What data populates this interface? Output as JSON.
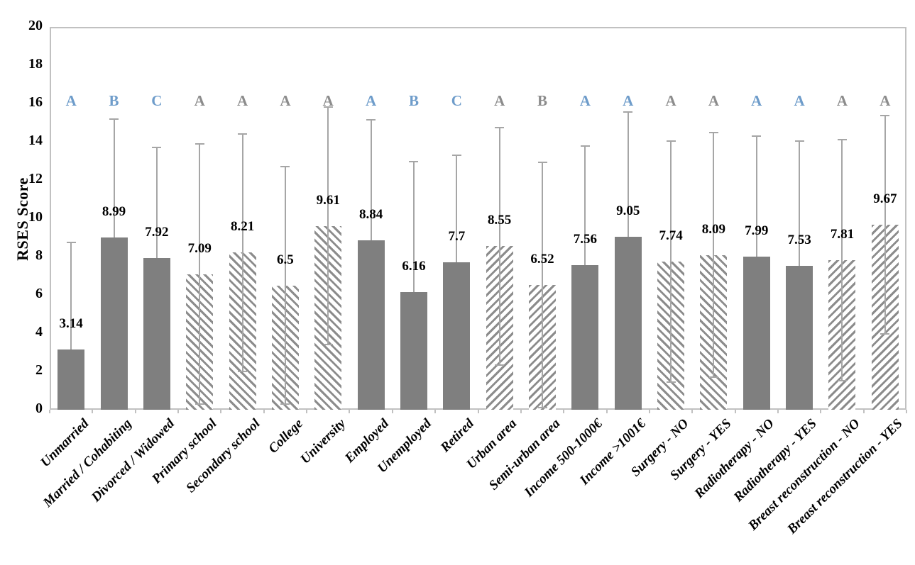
{
  "chart_data": {
    "type": "bar",
    "title": "",
    "xlabel": "",
    "ylabel": "RSES Score",
    "ylim": [
      0,
      20
    ],
    "ytick_step": 2,
    "grid": "off",
    "legend": "none",
    "categories": [
      "Unmarried",
      "Married / Cohabiting",
      "Divorced / Widowed",
      "Primary school",
      "Secondary school",
      "College",
      "University",
      "Employed",
      "Unemployed",
      "Retired",
      "Urban area",
      "Semi-urban area",
      "Income 500-1000€",
      "Income >1001€",
      "Surgery - NO",
      "Surgery - YES",
      "Radiotherapy - NO",
      "Radiotherapy - YES",
      "Breast reconstruction - NO",
      "Breast reconstruction - YES"
    ],
    "series": [
      {
        "name": "RSES Score",
        "values": [
          3.14,
          8.99,
          7.92,
          7.09,
          8.21,
          6.5,
          9.61,
          8.84,
          6.16,
          7.7,
          8.55,
          6.52,
          7.56,
          9.05,
          7.74,
          8.09,
          7.99,
          7.53,
          7.81,
          9.67
        ],
        "value_labels": [
          "3.14",
          "8.99",
          "7.92",
          "7.09",
          "8.21",
          "6.5",
          "9.61",
          "8.84",
          "6.16",
          "7.7",
          "8.55",
          "6.52",
          "7.56",
          "9.05",
          "7.74",
          "8.09",
          "7.99",
          "7.53",
          "7.81",
          "9.67"
        ],
        "error_sd": [
          5.6,
          6.2,
          5.8,
          6.8,
          6.2,
          6.2,
          6.2,
          6.3,
          6.8,
          5.6,
          6.2,
          6.4,
          6.2,
          6.5,
          6.3,
          6.4,
          6.3,
          6.5,
          6.3,
          5.7
        ]
      }
    ],
    "significance_letters": [
      "A",
      "B",
      "C",
      "A",
      "A",
      "A",
      "A",
      "A",
      "B",
      "C",
      "A",
      "B",
      "A",
      "A",
      "A",
      "A",
      "A",
      "A",
      "A",
      "A"
    ],
    "letter_colors": [
      "blue",
      "blue",
      "blue",
      "gray",
      "gray",
      "gray",
      "gray",
      "blue",
      "blue",
      "blue",
      "gray",
      "gray",
      "blue",
      "blue",
      "gray",
      "gray",
      "blue",
      "blue",
      "gray",
      "gray"
    ],
    "bar_styles": [
      "solid",
      "solid",
      "solid",
      "hatch-down",
      "hatch-down",
      "hatch-down",
      "hatch-down",
      "solid",
      "solid",
      "solid",
      "hatch-up",
      "hatch-up",
      "solid",
      "solid",
      "hatch-down",
      "hatch-down",
      "solid",
      "solid",
      "hatch-up",
      "hatch-up"
    ],
    "colors": {
      "bar_solid": "#7f7f7f",
      "hatch_line": "#8c8c8c",
      "error_bar": "#a6a6a6",
      "letter_blue": "#6e9cca",
      "letter_gray": "#8c8c8c",
      "axis_border": "#c1c1c1",
      "text": "#000000"
    }
  }
}
